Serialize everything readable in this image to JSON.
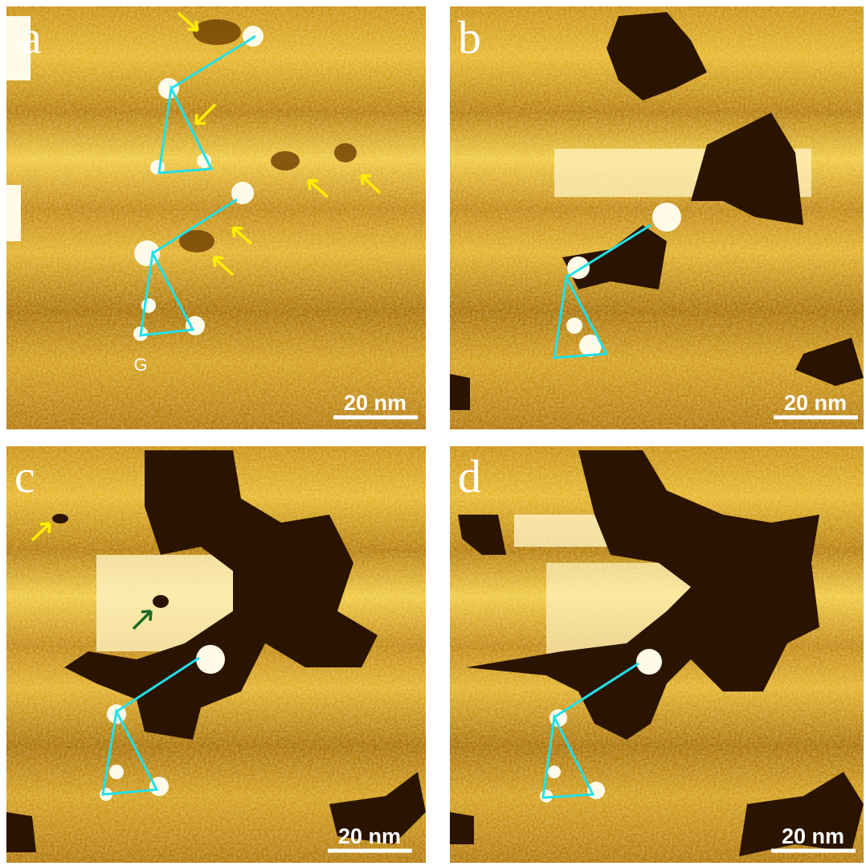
{
  "panels": [
    {
      "label": "a",
      "scale_bar": "20 nm",
      "marker": "G"
    },
    {
      "label": "b",
      "scale_bar": "20 nm"
    },
    {
      "label": "c",
      "scale_bar": "20 nm"
    },
    {
      "label": "d",
      "scale_bar": "20 nm"
    }
  ]
}
